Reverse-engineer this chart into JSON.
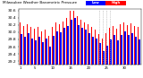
{
  "title": "Milwaukee Weather Barometric Pressure",
  "subtitle": "Daily High/Low",
  "legend_high": "High",
  "legend_low": "Low",
  "legend_high_color": "#ff0000",
  "legend_low_color": "#0000ff",
  "background_color": "#ffffff",
  "ylim": [
    29.1,
    30.65
  ],
  "yticks": [
    29.2,
    29.4,
    29.6,
    29.8,
    30.0,
    30.2,
    30.4,
    30.6
  ],
  "bar_width": 0.38,
  "dotted_line_indices": [
    22,
    23,
    24,
    25
  ],
  "high_values": [
    30.28,
    30.18,
    30.22,
    30.14,
    30.1,
    30.14,
    30.02,
    30.08,
    29.9,
    30.15,
    30.28,
    30.22,
    30.3,
    30.38,
    30.58,
    30.6,
    30.44,
    30.35,
    30.28,
    30.22,
    30.14,
    30.08,
    29.95,
    29.82,
    29.96,
    30.12,
    30.18,
    30.1,
    30.22,
    30.28,
    30.2,
    30.25,
    30.18,
    30.14
  ],
  "low_values": [
    29.95,
    29.88,
    29.98,
    29.82,
    29.78,
    29.88,
    29.72,
    29.82,
    29.6,
    29.9,
    30.02,
    30.0,
    30.12,
    30.18,
    30.35,
    30.38,
    30.2,
    30.12,
    30.06,
    29.96,
    29.88,
    29.82,
    29.7,
    29.48,
    29.62,
    29.8,
    29.92,
    29.78,
    29.92,
    30.02,
    29.92,
    29.98,
    29.88,
    29.8
  ],
  "xlabels": [
    "1",
    "",
    "",
    "",
    "5",
    "",
    "",
    "",
    "",
    "10",
    "",
    "",
    "",
    "",
    "15",
    "",
    "",
    "",
    "",
    "20",
    "",
    "",
    "",
    "",
    "25",
    "",
    "",
    "",
    "",
    "30",
    "",
    "",
    "",
    ""
  ]
}
